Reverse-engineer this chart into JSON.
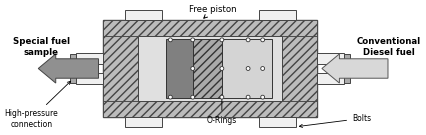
{
  "figsize": [
    4.26,
    1.35
  ],
  "dpi": 100,
  "bg_color": "#ffffff",
  "hatch_fc": "#bcbcbc",
  "body_fc": "#c0c0c0",
  "bore_fc": "#e0e0e0",
  "piston_dark": "#808080",
  "piston_hatch_fc": "#aaaaaa",
  "piston_light": "#d4d4d4",
  "bolt_fc": "#f0f0f0",
  "pipe_fc": "#f0f0f0",
  "arrow_left_fc": "#909090",
  "arrow_right_fc": "#d8d8d8",
  "text_color": "#000000",
  "edge_color": "#444444",
  "labels": {
    "free_piston": "Free piston",
    "special_fuel": "Special fuel\nsample",
    "conventional_diesel": "Conventional\nDiesel fuel",
    "high_pressure": "High-pressure\nconnection",
    "o_rings": "O-Rings",
    "bolts": "Bolts"
  }
}
